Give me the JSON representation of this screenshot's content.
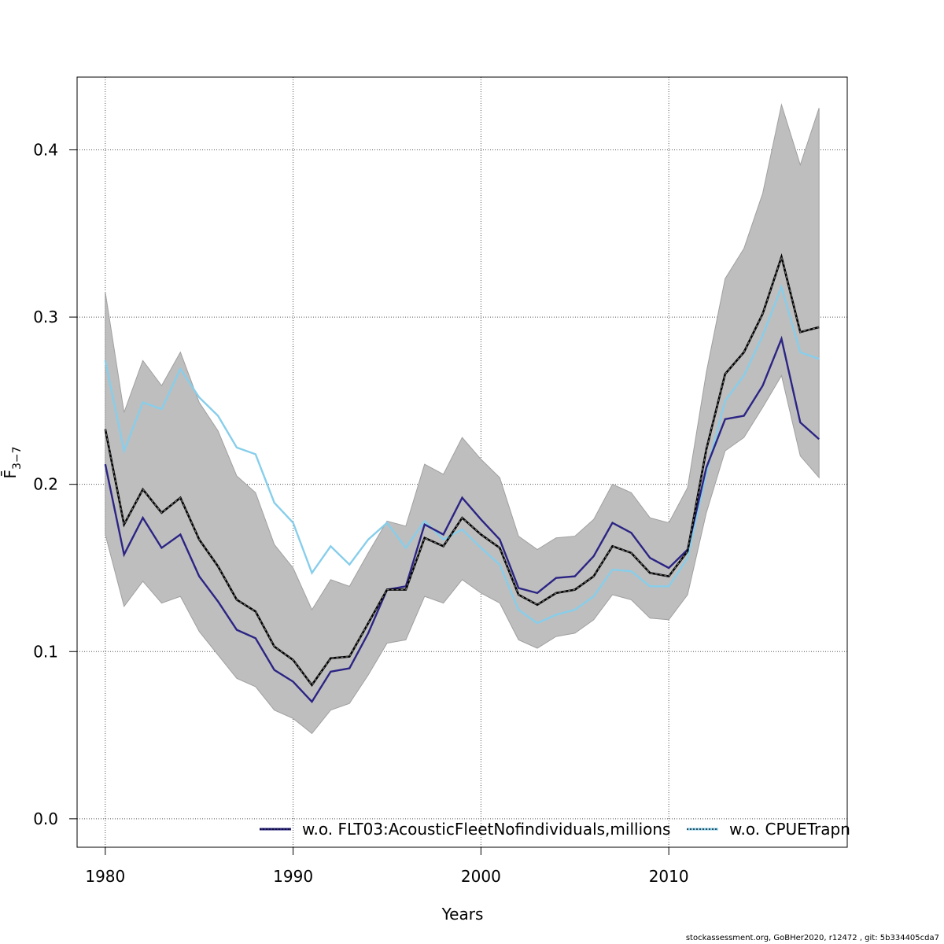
{
  "chart_data": {
    "type": "line",
    "xlabel": "Years",
    "ylabel": "F̄",
    "ylabel_subscript": "3−7",
    "xlim": [
      1978.5,
      2019.5
    ],
    "ylim": [
      -0.017,
      0.4435
    ],
    "x_ticks": [
      1980,
      1990,
      2000,
      2010
    ],
    "y_ticks": [
      0.0,
      0.1,
      0.2,
      0.3,
      0.4
    ],
    "x_tick_labels": [
      "1980",
      "1990",
      "2000",
      "2010"
    ],
    "y_tick_labels": [
      "0.0",
      "0.1",
      "0.2",
      "0.3",
      "0.4"
    ],
    "grid": true,
    "legend_position": "bottom",
    "years": [
      1980,
      1981,
      1982,
      1983,
      1984,
      1985,
      1986,
      1987,
      1988,
      1989,
      1990,
      1991,
      1992,
      1993,
      1994,
      1995,
      1996,
      1997,
      1998,
      1999,
      2000,
      2001,
      2002,
      2003,
      2004,
      2005,
      2006,
      2007,
      2008,
      2009,
      2010,
      2011,
      2012,
      2013,
      2014,
      2015,
      2016,
      2017,
      2018
    ],
    "base": {
      "estimate": [
        0.233,
        0.176,
        0.197,
        0.183,
        0.192,
        0.167,
        0.151,
        0.131,
        0.124,
        0.103,
        0.095,
        0.08,
        0.096,
        0.097,
        0.117,
        0.137,
        0.137,
        0.168,
        0.163,
        0.18,
        0.17,
        0.162,
        0.134,
        0.128,
        0.135,
        0.137,
        0.145,
        0.163,
        0.159,
        0.147,
        0.145,
        0.16,
        0.221,
        0.266,
        0.279,
        0.302,
        0.336,
        0.291,
        0.294
      ],
      "lower": [
        0.17,
        0.127,
        0.142,
        0.129,
        0.133,
        0.112,
        0.098,
        0.084,
        0.079,
        0.065,
        0.06,
        0.051,
        0.065,
        0.069,
        0.086,
        0.105,
        0.107,
        0.133,
        0.129,
        0.143,
        0.135,
        0.129,
        0.107,
        0.102,
        0.109,
        0.111,
        0.119,
        0.134,
        0.131,
        0.12,
        0.119,
        0.134,
        0.183,
        0.22,
        0.228,
        0.246,
        0.265,
        0.217,
        0.204
      ],
      "upper": [
        0.315,
        0.243,
        0.274,
        0.259,
        0.279,
        0.249,
        0.232,
        0.205,
        0.195,
        0.164,
        0.15,
        0.125,
        0.143,
        0.139,
        0.159,
        0.178,
        0.175,
        0.212,
        0.206,
        0.228,
        0.215,
        0.204,
        0.169,
        0.161,
        0.168,
        0.169,
        0.179,
        0.2,
        0.195,
        0.18,
        0.177,
        0.198,
        0.267,
        0.323,
        0.341,
        0.374,
        0.427,
        0.391,
        0.425
      ]
    },
    "series": [
      {
        "name": "w.o. FLT03:AcousticFleetNofindividuals,millions",
        "color": "#2b2484",
        "values": [
          0.212,
          0.158,
          0.18,
          0.162,
          0.17,
          0.145,
          0.13,
          0.113,
          0.108,
          0.089,
          0.082,
          0.07,
          0.088,
          0.09,
          0.111,
          0.137,
          0.139,
          0.176,
          0.17,
          0.192,
          0.179,
          0.167,
          0.138,
          0.135,
          0.144,
          0.145,
          0.157,
          0.177,
          0.171,
          0.156,
          0.15,
          0.161,
          0.21,
          0.239,
          0.241,
          0.259,
          0.287,
          0.237,
          0.227
        ]
      },
      {
        "name": "w.o. CPUETrapn",
        "color": "#87ceeb",
        "values": [
          0.274,
          0.22,
          0.249,
          0.245,
          0.269,
          0.252,
          0.241,
          0.222,
          0.218,
          0.189,
          0.177,
          0.147,
          0.163,
          0.152,
          0.167,
          0.177,
          0.162,
          0.178,
          0.167,
          0.173,
          0.162,
          0.152,
          0.125,
          0.117,
          0.122,
          0.125,
          0.133,
          0.149,
          0.148,
          0.139,
          0.139,
          0.156,
          0.207,
          0.25,
          0.265,
          0.289,
          0.318,
          0.279,
          0.275
        ]
      }
    ],
    "colors": {
      "band": "#bebebe",
      "band_edge": "#a0a0a0",
      "base_line": "#000000",
      "grid": "#555555"
    }
  },
  "footer": "stockassessment.org, GoBHer2020, r12472 , git: 5b334405cda7"
}
